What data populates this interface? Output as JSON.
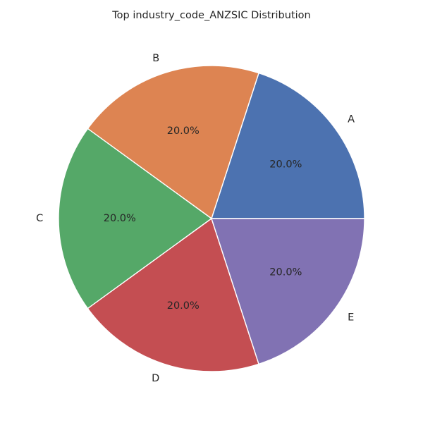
{
  "chart_data": {
    "type": "pie",
    "title": "Top industry_code_ANZSIC Distribution",
    "categories": [
      "A",
      "B",
      "C",
      "D",
      "E"
    ],
    "values": [
      20,
      20,
      20,
      20,
      20
    ],
    "percent_labels": [
      "20.0%",
      "20.0%",
      "20.0%",
      "20.0%",
      "20.0%"
    ],
    "colors": [
      "#4c72b0",
      "#dd8452",
      "#55a868",
      "#c44e52",
      "#8172b3"
    ],
    "start_angle_deg": 0,
    "direction": "counterclockwise",
    "legend": "none"
  }
}
